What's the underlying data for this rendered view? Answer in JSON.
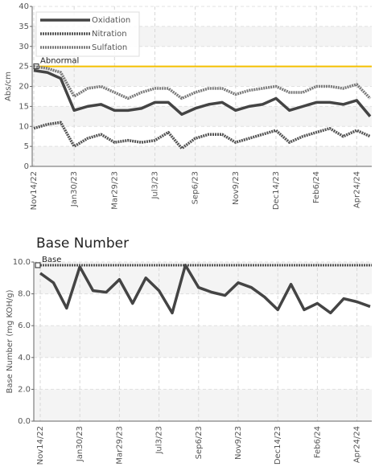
{
  "chart_data": [
    {
      "type": "line",
      "y_label": "Abs/cm",
      "categories": [
        "Nov14/22",
        null,
        null,
        "Jan30/23",
        null,
        null,
        "Mar29/23",
        null,
        null,
        "Jul3/23",
        null,
        null,
        "Sep6/23",
        null,
        null,
        "Nov9/23",
        null,
        null,
        "Dec14/23",
        null,
        null,
        "Feb6/24",
        null,
        null,
        "Apr24/24",
        null
      ],
      "series": [
        {
          "name": "Oxidation",
          "color": "#444444",
          "dash": false,
          "values": [
            24,
            23.5,
            22,
            14,
            15,
            15.5,
            14,
            14,
            14.5,
            16,
            16,
            13,
            14.5,
            15.5,
            16,
            14,
            15,
            15.5,
            17,
            14,
            15,
            16,
            16,
            15.5,
            16.5,
            12.5
          ]
        },
        {
          "name": "Nitration",
          "color": "#555555",
          "dash": true,
          "values": [
            9.5,
            10.5,
            11,
            5,
            7,
            8,
            6,
            6.5,
            6,
            6.5,
            8.5,
            4.5,
            7,
            8,
            8,
            6,
            7,
            8,
            9,
            6,
            7.5,
            8.5,
            9.5,
            7.5,
            9,
            7.5
          ]
        },
        {
          "name": "Sulfation",
          "color": "#7a7a7a",
          "dash": true,
          "values": [
            25,
            24.5,
            23.5,
            17.5,
            19.5,
            20,
            18.5,
            17,
            18.5,
            19.5,
            19.5,
            17,
            18.5,
            19.5,
            19.5,
            18,
            19,
            19.5,
            20,
            18.5,
            18.5,
            20,
            20,
            19.5,
            20.5,
            17
          ]
        }
      ],
      "reference_lines": [
        {
          "label": "Abnormal",
          "value": 25,
          "color": "#f5c000"
        }
      ],
      "ylim": [
        0,
        40
      ],
      "yticks": [
        0,
        5,
        10,
        15,
        20,
        25,
        30,
        35,
        40
      ],
      "grid": true,
      "legend": "top-left"
    },
    {
      "type": "line",
      "title": "Base Number",
      "y_label": "Base Number (mg KOH/g)",
      "categories": [
        "Nov14/22",
        null,
        null,
        "Jan30/23",
        null,
        null,
        "Mar29/23",
        null,
        null,
        "Jul3/23",
        null,
        null,
        "Sep6/23",
        null,
        null,
        "Nov9/23",
        null,
        null,
        "Dec14/23",
        null,
        null,
        "Feb6/24",
        null,
        null,
        "Apr24/24",
        null
      ],
      "series": [
        {
          "color": "#444444",
          "dash": false,
          "values": [
            9.3,
            8.7,
            7.1,
            9.7,
            8.2,
            8.1,
            8.9,
            7.4,
            9.0,
            8.2,
            6.8,
            9.8,
            8.4,
            8.1,
            7.9,
            8.7,
            8.4,
            7.8,
            7.0,
            8.6,
            7.0,
            7.4,
            6.8,
            7.7,
            7.5,
            7.2
          ]
        }
      ],
      "reference_lines": [
        {
          "label": "Base",
          "value": 9.8,
          "color": "#555555"
        }
      ],
      "ylim": [
        0,
        10
      ],
      "yticks": [
        {
          "value": 0,
          "label": "0.0"
        },
        {
          "value": 2,
          "label": "2.0"
        },
        {
          "value": 4,
          "label": "4.0"
        },
        {
          "value": 6,
          "label": "6.0"
        },
        {
          "value": 8,
          "label": "8.0"
        },
        {
          "value": 10,
          "label": "10.0"
        }
      ],
      "grid": true
    }
  ]
}
